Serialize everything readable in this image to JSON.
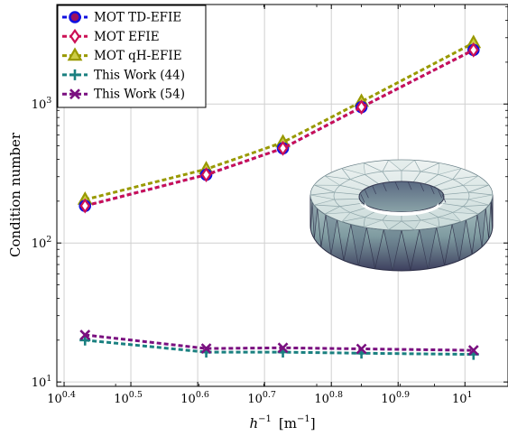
{
  "chart_data": {
    "type": "line",
    "xscale": "log",
    "yscale": "log",
    "xlim": [
      2.45,
      11.6
    ],
    "ylim": [
      9.3,
      5200
    ],
    "x_ticks": [
      {
        "value": 2.512,
        "base": "10",
        "exp": "0.4"
      },
      {
        "value": 3.162,
        "base": "10",
        "exp": "0.5"
      },
      {
        "value": 3.981,
        "base": "10",
        "exp": "0.6"
      },
      {
        "value": 5.012,
        "base": "10",
        "exp": "0.7"
      },
      {
        "value": 6.31,
        "base": "10",
        "exp": "0.8"
      },
      {
        "value": 7.943,
        "base": "10",
        "exp": "0.9"
      },
      {
        "value": 10.0,
        "base": "10",
        "exp": "1"
      }
    ],
    "y_ticks": [
      {
        "value": 10,
        "base": "10",
        "exp": "1"
      },
      {
        "value": 100,
        "base": "10",
        "exp": "2"
      },
      {
        "value": 1000,
        "base": "10",
        "exp": "3"
      }
    ],
    "xlabel": {
      "base": "h",
      "base_exp": "−1",
      "unit_open": "[m",
      "unit_exp": "−1",
      "unit_close": "]"
    },
    "ylabel": "Condition number",
    "grid": true,
    "legend_position": "top-left",
    "series": [
      {
        "name": "MOT TD-EFIE",
        "color": "#1010e0",
        "marker": "circle",
        "x": [
          2.7,
          4.1,
          5.34,
          7.0,
          10.3
        ],
        "y": [
          185,
          310,
          480,
          950,
          2450
        ]
      },
      {
        "name": "MOT EFIE",
        "color": "#cc1055",
        "marker": "diamond",
        "x": [
          2.7,
          4.1,
          5.34,
          7.0,
          10.3
        ],
        "y": [
          185,
          310,
          480,
          950,
          2450
        ]
      },
      {
        "name": "MOT qH-EFIE",
        "color": "#999900",
        "marker": "triangle",
        "x": [
          2.7,
          4.1,
          5.34,
          7.0,
          10.3
        ],
        "y": [
          205,
          340,
          530,
          1040,
          2750
        ]
      },
      {
        "name": "This Work (44)",
        "color": "#1a8080",
        "marker": "plus",
        "x": [
          2.7,
          4.1,
          5.34,
          7.0,
          10.3
        ],
        "y": [
          20.0,
          16.4,
          16.4,
          16.1,
          15.8
        ]
      },
      {
        "name": "This Work (54)",
        "color": "#7a1080",
        "marker": "cross",
        "x": [
          2.7,
          4.1,
          5.34,
          7.0,
          10.3
        ],
        "y": [
          21.8,
          17.4,
          17.6,
          17.3,
          16.9
        ]
      }
    ]
  },
  "inset": {
    "shape": "torus-mesh"
  }
}
